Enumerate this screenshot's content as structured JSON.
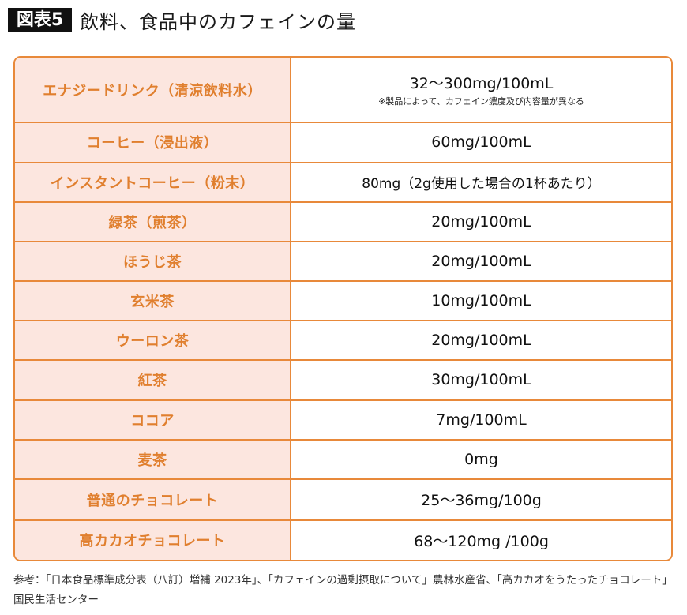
{
  "header": {
    "figure_label": "図表5",
    "title": "飲料、食品中のカフェインの量"
  },
  "colors": {
    "border": "#e8893a",
    "label_bg": "#fce6df",
    "label_text": "#e07f2e",
    "value_text": "#111111",
    "figure_label_bg": "#111111"
  },
  "table": {
    "rows": [
      {
        "name": "エナジードリンク（清涼飲料水）",
        "value": "32〜300mg/100mL",
        "note": "※製品によって、カフェイン濃度及び内容量が異なる"
      },
      {
        "name": "コーヒー（浸出液）",
        "value": "60mg/100mL"
      },
      {
        "name": "インスタントコーヒー（粉末）",
        "value": "80mg（2g使用した場合の1杯あたり）"
      },
      {
        "name": "緑茶（煎茶）",
        "value": "20mg/100mL"
      },
      {
        "name": "ほうじ茶",
        "value": "20mg/100mL"
      },
      {
        "name": "玄米茶",
        "value": "10mg/100mL"
      },
      {
        "name": "ウーロン茶",
        "value": "20mg/100mL"
      },
      {
        "name": "紅茶",
        "value": "30mg/100mL"
      },
      {
        "name": "ココア",
        "value": "7mg/100mL"
      },
      {
        "name": "麦茶",
        "value": "0mg"
      },
      {
        "name": "普通のチョコレート",
        "value": "25〜36mg/100g"
      },
      {
        "name": "高カカオチョコレート",
        "value": "68〜120mg /100g"
      }
    ]
  },
  "footer": {
    "source": "参考：「日本食品標準成分表（八訂）増補 2023年」、「カフェインの過剰摂取について」農林水産省、「高カカオをうたったチョコレート」国民生活センター"
  }
}
